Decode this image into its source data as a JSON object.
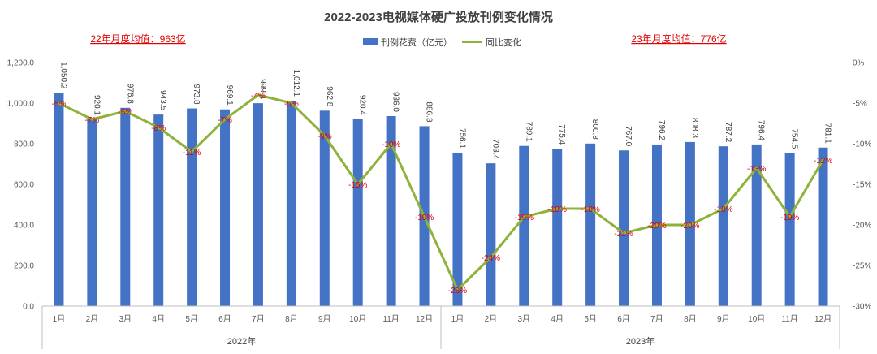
{
  "chart_data": {
    "type": "bar",
    "title": "2022-2023电视媒体硬广投放刊例变化情况",
    "annotations": [
      "22年月度均值：963亿",
      "23年月度均值：776亿"
    ],
    "categories": [
      "1月",
      "2月",
      "3月",
      "4月",
      "5月",
      "6月",
      "7月",
      "8月",
      "9月",
      "10月",
      "11月",
      "12月",
      "1月",
      "2月",
      "3月",
      "4月",
      "5月",
      "6月",
      "7月",
      "8月",
      "9月",
      "10月",
      "11月",
      "12月"
    ],
    "groups": [
      {
        "label": "2022年",
        "start": 0,
        "end": 11
      },
      {
        "label": "2023年",
        "start": 12,
        "end": 23
      }
    ],
    "series": [
      {
        "name": "刊例花费（亿元）",
        "type": "bar",
        "axis": "left",
        "color": "#4472c4",
        "values": [
          1050.2,
          920.1,
          976.8,
          943.5,
          973.8,
          969.1,
          999.4,
          1012.1,
          962.8,
          920.4,
          936.0,
          886.3,
          756.1,
          703.4,
          789.1,
          775.4,
          800.8,
          767.0,
          796.2,
          808.3,
          787.2,
          796.4,
          754.5,
          781.1
        ],
        "labels": [
          "1,050.2",
          "920.1",
          "976.8",
          "943.5",
          "973.8",
          "969.1",
          "999.4",
          "1,012.1",
          "962.8",
          "920.4",
          "936.0",
          "886.3",
          "756.1",
          "703.4",
          "789.1",
          "775.4",
          "800.8",
          "767.0",
          "796.2",
          "808.3",
          "787.2",
          "796.4",
          "754.5",
          "781.1"
        ]
      },
      {
        "name": "同比变化",
        "type": "line",
        "axis": "right",
        "color": "#8fb33a",
        "values": [
          -5,
          -7,
          -6,
          -8,
          -11,
          -7,
          -4,
          -5,
          -9,
          -15,
          -10,
          -19,
          -28,
          -24,
          -19,
          -18,
          -18,
          -21,
          -20,
          -20,
          -18,
          -13,
          -19,
          -12
        ],
        "labels": [
          "-5%",
          "-7%",
          "-6%",
          "-8%",
          "-11%",
          "-7%",
          "-4%",
          "-5%",
          "-9%",
          "-15%",
          "-10%",
          "-19%",
          "-28%",
          "-24%",
          "-19%",
          "-18%",
          "-18%",
          "-21%",
          "-20%",
          "-20%",
          "-18%",
          "-13%",
          "-19%",
          "-12%"
        ]
      }
    ],
    "y_left": {
      "min": 0,
      "max": 1200,
      "step": 200,
      "ticks": [
        "0.0",
        "200.0",
        "400.0",
        "600.0",
        "800.0",
        "1,000.0",
        "1,200.0"
      ]
    },
    "y_right": {
      "min": -30,
      "max": 0,
      "step": 5,
      "ticks": [
        "-30%",
        "-25%",
        "-20%",
        "-15%",
        "-10%",
        "-5%",
        "0%"
      ]
    },
    "legend_position": "top-center",
    "grid": false
  }
}
